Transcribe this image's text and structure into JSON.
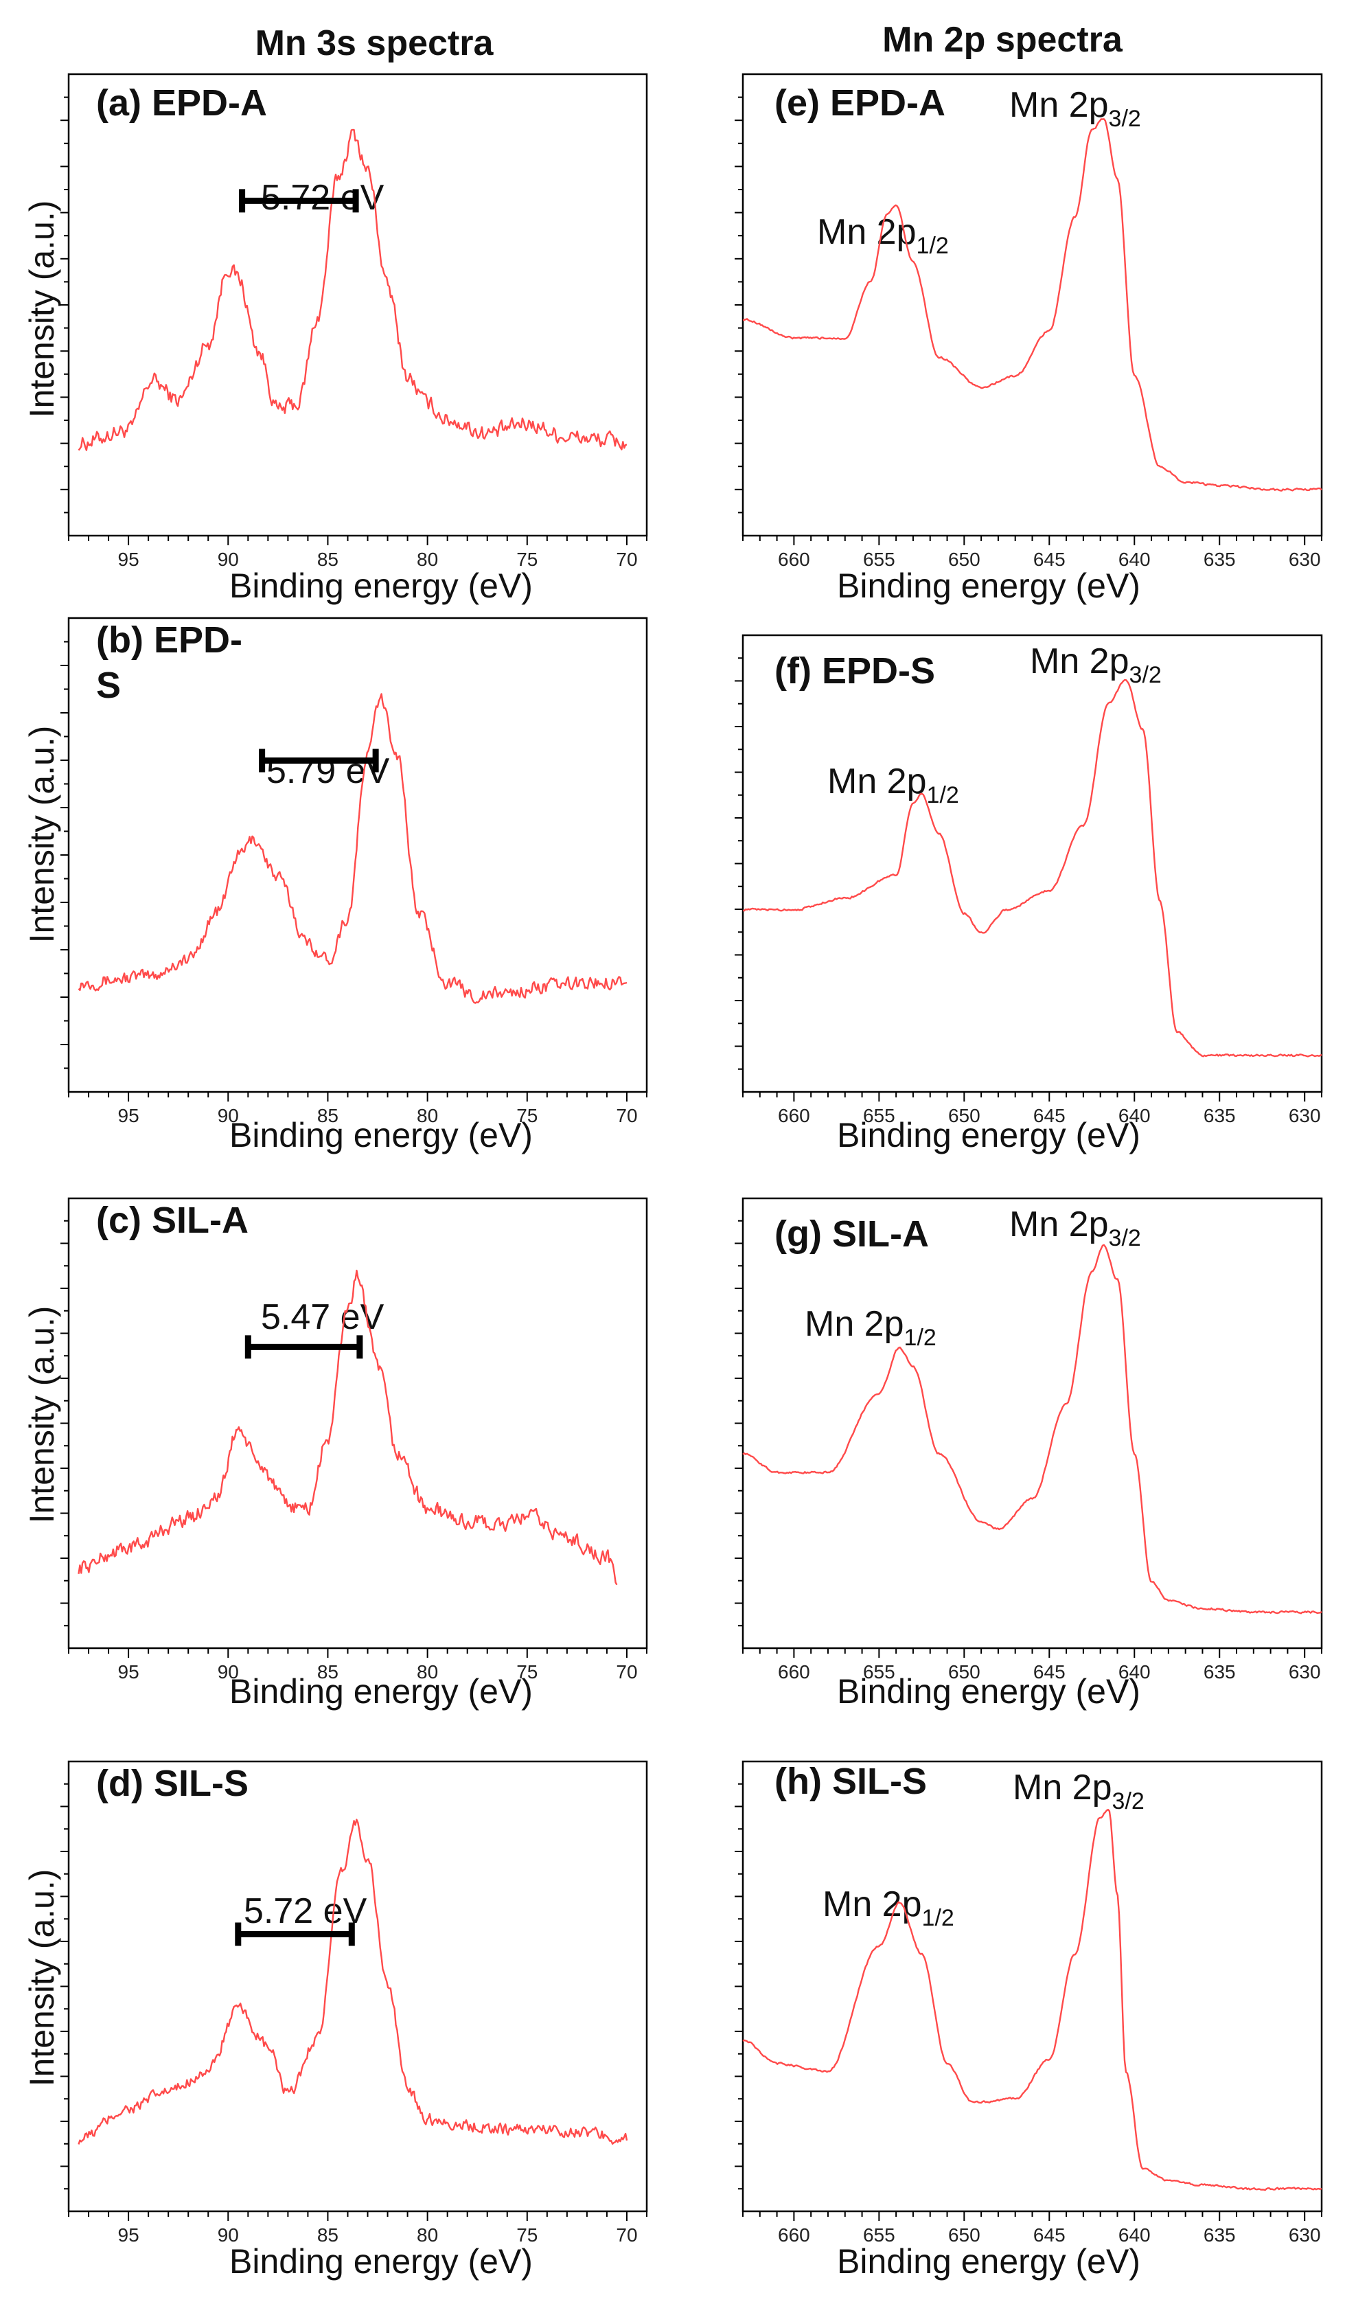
{
  "figure": {
    "left_title": "Mn 3s spectra",
    "right_title": "Mn 2p spectra"
  },
  "colors": {
    "spectrum": "#ff4a4a",
    "axis": "#000000",
    "text": "#111111"
  },
  "chart_data": [
    {
      "id": "a",
      "type": "line",
      "panel_label": "(a) EPD-A",
      "xlabel": "Binding energy (eV)",
      "ylabel": "Intensity (a.u.)",
      "xlim": [
        98,
        69
      ],
      "x_reversed": true,
      "xticks": [
        95,
        90,
        85,
        80,
        75,
        70
      ],
      "ylim": [
        0,
        1
      ],
      "y_tick_labels": false,
      "grid": false,
      "series": [
        {
          "values_x": [
            97.5,
            95,
            93.8,
            92.5,
            91,
            90,
            89.5,
            88.5,
            87.5,
            86.5,
            85.5,
            84.5,
            83.7,
            83,
            82,
            81,
            80,
            79,
            77,
            75,
            73,
            71,
            70
          ],
          "values_y": [
            0.0,
            0.04,
            0.19,
            0.13,
            0.3,
            0.53,
            0.5,
            0.28,
            0.1,
            0.12,
            0.38,
            0.8,
            0.93,
            0.82,
            0.47,
            0.2,
            0.12,
            0.07,
            0.03,
            0.06,
            0.02,
            0.01,
            0.0
          ]
        }
      ],
      "noise": 0.035,
      "annotation": {
        "text": "5.72 eV",
        "bar_from": 89.3,
        "bar_to": 83.6,
        "level": 0.73
      }
    },
    {
      "id": "b",
      "type": "line",
      "panel_label_line1": "(b) EPD-",
      "panel_label_line2": "S",
      "xlabel": "Binding energy (eV)",
      "ylabel": "Intensity (a.u.)",
      "xlim": [
        98,
        69
      ],
      "x_reversed": true,
      "xticks": [
        95,
        90,
        85,
        80,
        75,
        70
      ],
      "ylim": [
        0,
        1
      ],
      "y_tick_labels": false,
      "grid": false,
      "series": [
        {
          "values_x": [
            97.5,
            94,
            92,
            90.5,
            89.5,
            88.7,
            87.5,
            86,
            85,
            84,
            83,
            82.4,
            81.5,
            80.5,
            79,
            77.5,
            76,
            74,
            72,
            70
          ],
          "values_y": [
            0.0,
            0.02,
            0.07,
            0.22,
            0.39,
            0.44,
            0.32,
            0.12,
            0.07,
            0.2,
            0.7,
            0.87,
            0.7,
            0.22,
            0.0,
            -0.04,
            -0.03,
            -0.01,
            0.0,
            0.01
          ]
        }
      ],
      "noise": 0.03,
      "annotation": {
        "text": "5.79 eV",
        "bar_from": 88.3,
        "bar_to": 82.6,
        "level": 0.68
      }
    },
    {
      "id": "c",
      "type": "line",
      "panel_label": "(c) SIL-A",
      "xlabel": "Binding energy (eV)",
      "ylabel": "Intensity (a.u.)",
      "xlim": [
        98,
        69
      ],
      "x_reversed": true,
      "xticks": [
        95,
        90,
        85,
        80,
        75,
        70
      ],
      "ylim": [
        0,
        1
      ],
      "y_tick_labels": false,
      "grid": false,
      "series": [
        {
          "values_x": [
            97.5,
            95,
            92,
            90.5,
            89.5,
            88.5,
            87,
            86,
            85,
            84,
            83.5,
            82.5,
            81.5,
            80,
            78,
            76,
            75,
            73,
            71,
            70.5
          ],
          "values_y": [
            0.0,
            0.06,
            0.15,
            0.22,
            0.43,
            0.32,
            0.19,
            0.18,
            0.4,
            0.8,
            0.9,
            0.62,
            0.35,
            0.18,
            0.14,
            0.13,
            0.16,
            0.09,
            0.03,
            -0.04
          ]
        }
      ],
      "noise": 0.035,
      "annotation": {
        "text": "5.47 eV",
        "bar_from": 89,
        "bar_to": 83.4,
        "level": 0.68
      }
    },
    {
      "id": "d",
      "type": "line",
      "panel_label": "(d) SIL-S",
      "xlabel": "Binding energy (eV)",
      "ylabel": "Intensity (a.u.)",
      "xlim": [
        98,
        69
      ],
      "x_reversed": true,
      "xticks": [
        95,
        90,
        85,
        80,
        75,
        70
      ],
      "ylim": [
        0,
        1
      ],
      "y_tick_labels": false,
      "grid": false,
      "series": [
        {
          "values_x": [
            97.5,
            95,
            93,
            91,
            89.5,
            88,
            87,
            85.5,
            84.3,
            83.6,
            83,
            82,
            81,
            80,
            78,
            76,
            74,
            72,
            70
          ],
          "values_y": [
            0.0,
            0.09,
            0.14,
            0.2,
            0.38,
            0.27,
            0.13,
            0.3,
            0.78,
            0.93,
            0.82,
            0.45,
            0.15,
            0.06,
            0.04,
            0.03,
            0.03,
            0.02,
            0.0
          ]
        }
      ],
      "noise": 0.025,
      "annotation": {
        "text": "5.72 eV",
        "bar_from": 89.5,
        "bar_to": 83.8,
        "level": 0.6
      }
    },
    {
      "id": "e",
      "type": "line",
      "panel_label": "(e) EPD-A",
      "xlabel": "Binding energy (eV)",
      "xlim": [
        663,
        629
      ],
      "x_reversed": true,
      "xticks": [
        660,
        655,
        650,
        645,
        640,
        635,
        630
      ],
      "ylim": [
        0,
        1
      ],
      "y_tick_labels": false,
      "grid": false,
      "series": [
        {
          "values_x": [
            663,
            660,
            657,
            655.5,
            654.5,
            654,
            653,
            651.5,
            649,
            647,
            645,
            643.5,
            642.5,
            641.8,
            641,
            640,
            638.5,
            637,
            635,
            632,
            629
          ],
          "values_y": [
            0.45,
            0.4,
            0.4,
            0.55,
            0.73,
            0.75,
            0.6,
            0.35,
            0.27,
            0.3,
            0.42,
            0.72,
            0.95,
            0.98,
            0.82,
            0.3,
            0.06,
            0.02,
            0.01,
            0.0,
            0.0
          ]
        }
      ],
      "noise": 0.004,
      "peaks": [
        {
          "main": "Mn 2p",
          "sub": "1/2"
        },
        {
          "main": "Mn 2p",
          "sub": "3/2"
        }
      ]
    },
    {
      "id": "f",
      "type": "line",
      "panel_label": "(f) EPD-S",
      "xlabel": "Binding energy (eV)",
      "xlim": [
        663,
        629
      ],
      "x_reversed": true,
      "xticks": [
        660,
        655,
        650,
        645,
        640,
        635,
        630
      ],
      "ylim": [
        0,
        1
      ],
      "y_tick_labels": false,
      "grid": false,
      "series": [
        {
          "values_x": [
            663,
            660,
            657,
            654,
            653,
            652.5,
            651.5,
            650,
            649,
            647.5,
            645,
            643,
            641.5,
            640.5,
            639.5,
            638.5,
            637.5,
            636,
            633,
            629
          ],
          "values_y": [
            0.38,
            0.38,
            0.41,
            0.47,
            0.66,
            0.68,
            0.58,
            0.37,
            0.32,
            0.38,
            0.43,
            0.6,
            0.92,
            0.98,
            0.85,
            0.4,
            0.06,
            0.0,
            0.0,
            0.0
          ]
        }
      ],
      "noise": 0.004,
      "peaks": [
        {
          "main": "Mn 2p",
          "sub": "1/2"
        },
        {
          "main": "Mn 2p",
          "sub": "3/2"
        }
      ]
    },
    {
      "id": "g",
      "type": "line",
      "panel_label": "(g) SIL-A",
      "xlabel": "Binding energy (eV)",
      "xlim": [
        663,
        629
      ],
      "x_reversed": true,
      "xticks": [
        660,
        655,
        650,
        645,
        640,
        635,
        630
      ],
      "ylim": [
        0,
        1
      ],
      "y_tick_labels": false,
      "grid": false,
      "series": [
        {
          "values_x": [
            663,
            661,
            658,
            655,
            653.8,
            653,
            651.5,
            649,
            648,
            646,
            644,
            642.5,
            641.8,
            641,
            640,
            639,
            638,
            636,
            633,
            629
          ],
          "values_y": [
            0.42,
            0.37,
            0.37,
            0.58,
            0.7,
            0.65,
            0.42,
            0.24,
            0.22,
            0.3,
            0.55,
            0.9,
            0.97,
            0.88,
            0.42,
            0.08,
            0.03,
            0.01,
            0.0,
            0.0
          ]
        }
      ],
      "noise": 0.004,
      "peaks": [
        {
          "main": "Mn 2p",
          "sub": "1/2"
        },
        {
          "main": "Mn 2p",
          "sub": "3/2"
        }
      ]
    },
    {
      "id": "h",
      "type": "line",
      "panel_label": "(h) SIL-S",
      "xlabel": "Binding energy (eV)",
      "xlim": [
        663,
        629
      ],
      "x_reversed": true,
      "xticks": [
        660,
        655,
        650,
        645,
        640,
        635,
        630
      ],
      "ylim": [
        0,
        1
      ],
      "y_tick_labels": false,
      "grid": false,
      "series": [
        {
          "values_x": [
            663,
            661,
            658,
            655,
            653.8,
            652.5,
            651,
            649.5,
            647,
            645,
            643.5,
            642,
            641.5,
            641,
            640.5,
            639.5,
            638,
            636,
            633,
            629
          ],
          "values_y": [
            0.38,
            0.32,
            0.3,
            0.62,
            0.73,
            0.6,
            0.32,
            0.22,
            0.23,
            0.33,
            0.6,
            0.95,
            0.97,
            0.75,
            0.3,
            0.05,
            0.02,
            0.01,
            0.0,
            0.0
          ]
        }
      ],
      "noise": 0.004,
      "peaks": [
        {
          "main": "Mn 2p",
          "sub": "1/2"
        },
        {
          "main": "Mn 2p",
          "sub": "3/2"
        }
      ]
    }
  ]
}
